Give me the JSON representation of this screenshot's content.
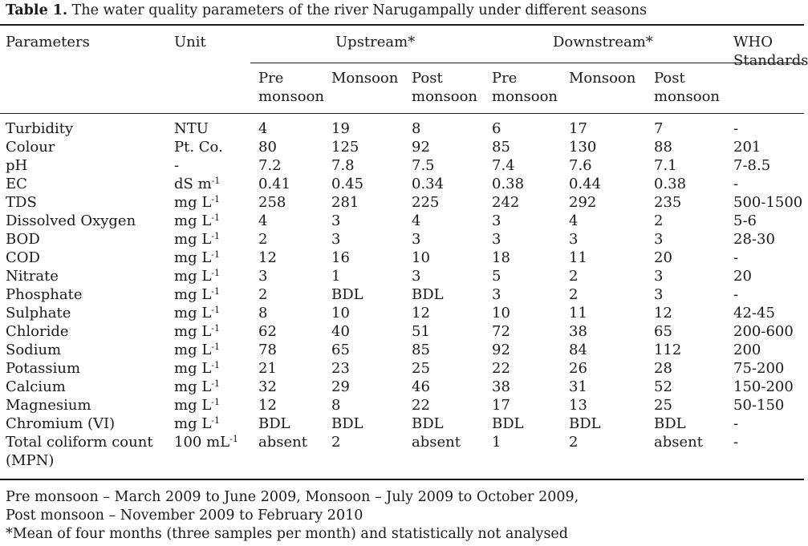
{
  "caption": {
    "label": "Table 1.",
    "text": " The water quality parameters of the river Narugampally under different seasons"
  },
  "headers": {
    "parameters": "Parameters",
    "unit": "Unit",
    "upstream": "Upstream*",
    "downstream": "Downstream*",
    "who_line1": "WHO",
    "who_line2": "Standards",
    "sub": [
      {
        "l1": "Pre",
        "l2": "monsoon"
      },
      {
        "l1": "Monsoon",
        "l2": ""
      },
      {
        "l1": "Post",
        "l2": "monsoon"
      },
      {
        "l1": "Pre",
        "l2": "monsoon"
      },
      {
        "l1": "Monsoon",
        "l2": ""
      },
      {
        "l1": "Post",
        "l2": "monsoon"
      }
    ]
  },
  "rows": [
    {
      "param": "Turbidity",
      "unit": "NTU",
      "sup": "",
      "vals": [
        "4",
        "19",
        "8",
        "6",
        "17",
        "7"
      ],
      "who": "-"
    },
    {
      "param": "Colour",
      "unit": "Pt. Co.",
      "sup": "",
      "vals": [
        "80",
        "125",
        "92",
        "85",
        "130",
        "88"
      ],
      "who": "201"
    },
    {
      "param": "pH",
      "unit": "-",
      "sup": "",
      "vals": [
        "7.2",
        "7.8",
        "7.5",
        "7.4",
        "7.6",
        "7.1"
      ],
      "who": "7-8.5"
    },
    {
      "param": "EC",
      "unit": "dS m",
      "sup": "-1",
      "vals": [
        "0.41",
        "0.45",
        "0.34",
        "0.38",
        "0.44",
        "0.38"
      ],
      "who": "-"
    },
    {
      "param": "TDS",
      "unit": "mg L",
      "sup": "-1",
      "vals": [
        "258",
        "281",
        "225",
        "242",
        "292",
        "235"
      ],
      "who": "500-1500"
    },
    {
      "param": "Dissolved Oxygen",
      "unit": "mg L",
      "sup": "-1",
      "vals": [
        "4",
        "3",
        "4",
        "3",
        "4",
        "2"
      ],
      "who": "5-6"
    },
    {
      "param": "BOD",
      "unit": "mg L",
      "sup": "-1",
      "vals": [
        "2",
        "3",
        "3",
        "3",
        "3",
        "3"
      ],
      "who": "28-30"
    },
    {
      "param": "COD",
      "unit": "mg L",
      "sup": "-1",
      "vals": [
        "12",
        "16",
        "10",
        "18",
        "11",
        "20"
      ],
      "who": "-"
    },
    {
      "param": "Nitrate",
      "unit": "mg L",
      "sup": "-1",
      "vals": [
        "3",
        "1",
        "3",
        "5",
        "2",
        "3"
      ],
      "who": "20"
    },
    {
      "param": "Phosphate",
      "unit": "mg L",
      "sup": "-1",
      "vals": [
        "2",
        "BDL",
        "BDL",
        "3",
        "2",
        "3"
      ],
      "who": "-"
    },
    {
      "param": "Sulphate",
      "unit": "mg L",
      "sup": "-1",
      "vals": [
        "8",
        "10",
        "12",
        "10",
        "11",
        "12"
      ],
      "who": "42-45"
    },
    {
      "param": "Chloride",
      "unit": "mg L",
      "sup": "-1",
      "vals": [
        "62",
        "40",
        "51",
        "72",
        "38",
        "65"
      ],
      "who": "200-600"
    },
    {
      "param": "Sodium",
      "unit": "mg L",
      "sup": "-1",
      "vals": [
        "78",
        "65",
        "85",
        "92",
        "84",
        "112"
      ],
      "who": "200"
    },
    {
      "param": "Potassium",
      "unit": "mg L",
      "sup": "-1",
      "vals": [
        "21",
        "23",
        "25",
        "22",
        "26",
        "28"
      ],
      "who": "75-200"
    },
    {
      "param": "Calcium",
      "unit": "mg L",
      "sup": "-1",
      "vals": [
        "32",
        "29",
        "46",
        "38",
        "31",
        "52"
      ],
      "who": "150-200"
    },
    {
      "param": "Magnesium",
      "unit": "mg L",
      "sup": "-1",
      "vals": [
        "12",
        "8",
        "22",
        "17",
        "13",
        "25"
      ],
      "who": "50-150"
    },
    {
      "param": "Chromium (VI)",
      "unit": "mg L",
      "sup": "-1",
      "vals": [
        "BDL",
        "BDL",
        "BDL",
        "BDL",
        "BDL",
        "BDL"
      ],
      "who": "-"
    },
    {
      "param": "Total coliform count",
      "param2": "(MPN)",
      "unit": "100 mL",
      "sup": "-1",
      "vals": [
        "absent",
        "2",
        "absent",
        "1",
        "2",
        "absent"
      ],
      "who": "-"
    }
  ],
  "footnotes": [
    "Pre monsoon – March 2009 to June 2009, Monsoon – July 2009 to October 2009,",
    "Post monsoon – November 2009 to February 2010",
    "*Mean of four months (three samples per month) and statistically not analysed"
  ]
}
